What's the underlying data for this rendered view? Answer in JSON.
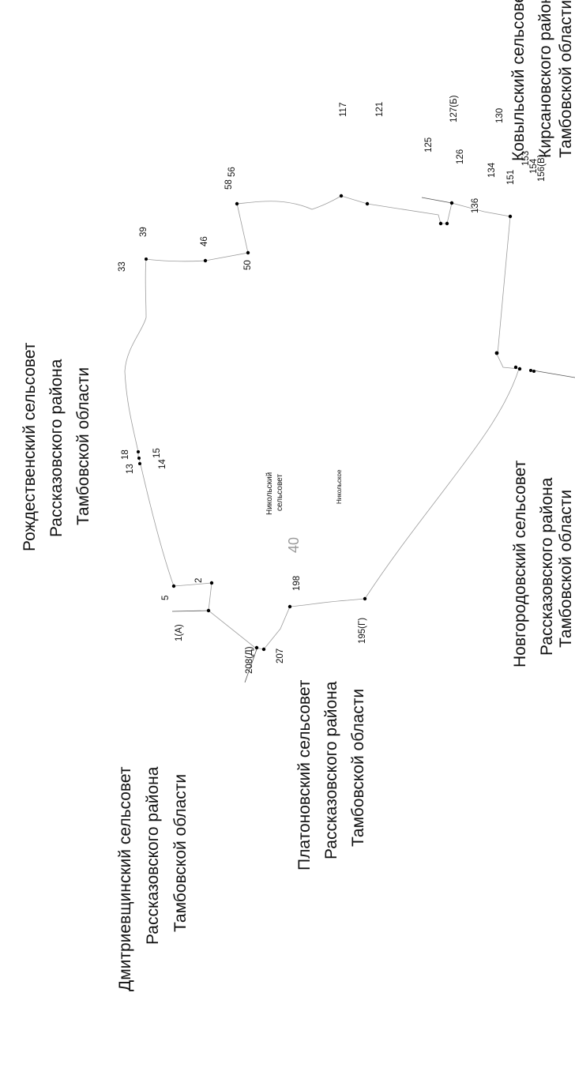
{
  "neighbors": [
    {
      "id": "dmitrievshchinsky",
      "lines": [
        "Дмитриевщинский сельсовет",
        "Рассказовского района",
        "Тамбовской области"
      ]
    },
    {
      "id": "platonovsky",
      "lines": [
        "Платоновский сельсовет",
        "Рассказовского района",
        "Тамбовской области"
      ]
    },
    {
      "id": "rozhdestvensky",
      "lines": [
        "Рождественский сельсовет",
        "Рассказовского района",
        "Тамбовской области"
      ]
    },
    {
      "id": "novgorodovsky",
      "lines": [
        "Новгородовский сельсовет",
        "Рассказовского района",
        "Тамбовской области"
      ]
    },
    {
      "id": "kovylsky",
      "lines": [
        "Ковыльский сельсовет",
        "Кирсановского района",
        "Тамбовской области"
      ]
    }
  ],
  "council": {
    "lines": [
      "Никольский",
      "сельсовет"
    ],
    "village": "Никольское",
    "number": "40"
  },
  "points": {
    "p1a": "1(А)",
    "p2": "2",
    "p5": "5",
    "p13": "13",
    "p14": "14",
    "p15": "15",
    "p18": "18",
    "p33": "33",
    "p39": "39",
    "p46": "46",
    "p50": "50",
    "p56": "56",
    "p58": "58",
    "p117": "117",
    "p121": "121",
    "p125": "125",
    "p126": "126",
    "p127b": "127(Б)",
    "p130": "130",
    "p134": "134",
    "p136": "136",
    "p151": "151",
    "p153": "153",
    "p154": "154",
    "p156v": "156(В)",
    "p195g": "195(Г)",
    "p198": "198",
    "p207": "207",
    "p208d": "208(Д)"
  }
}
